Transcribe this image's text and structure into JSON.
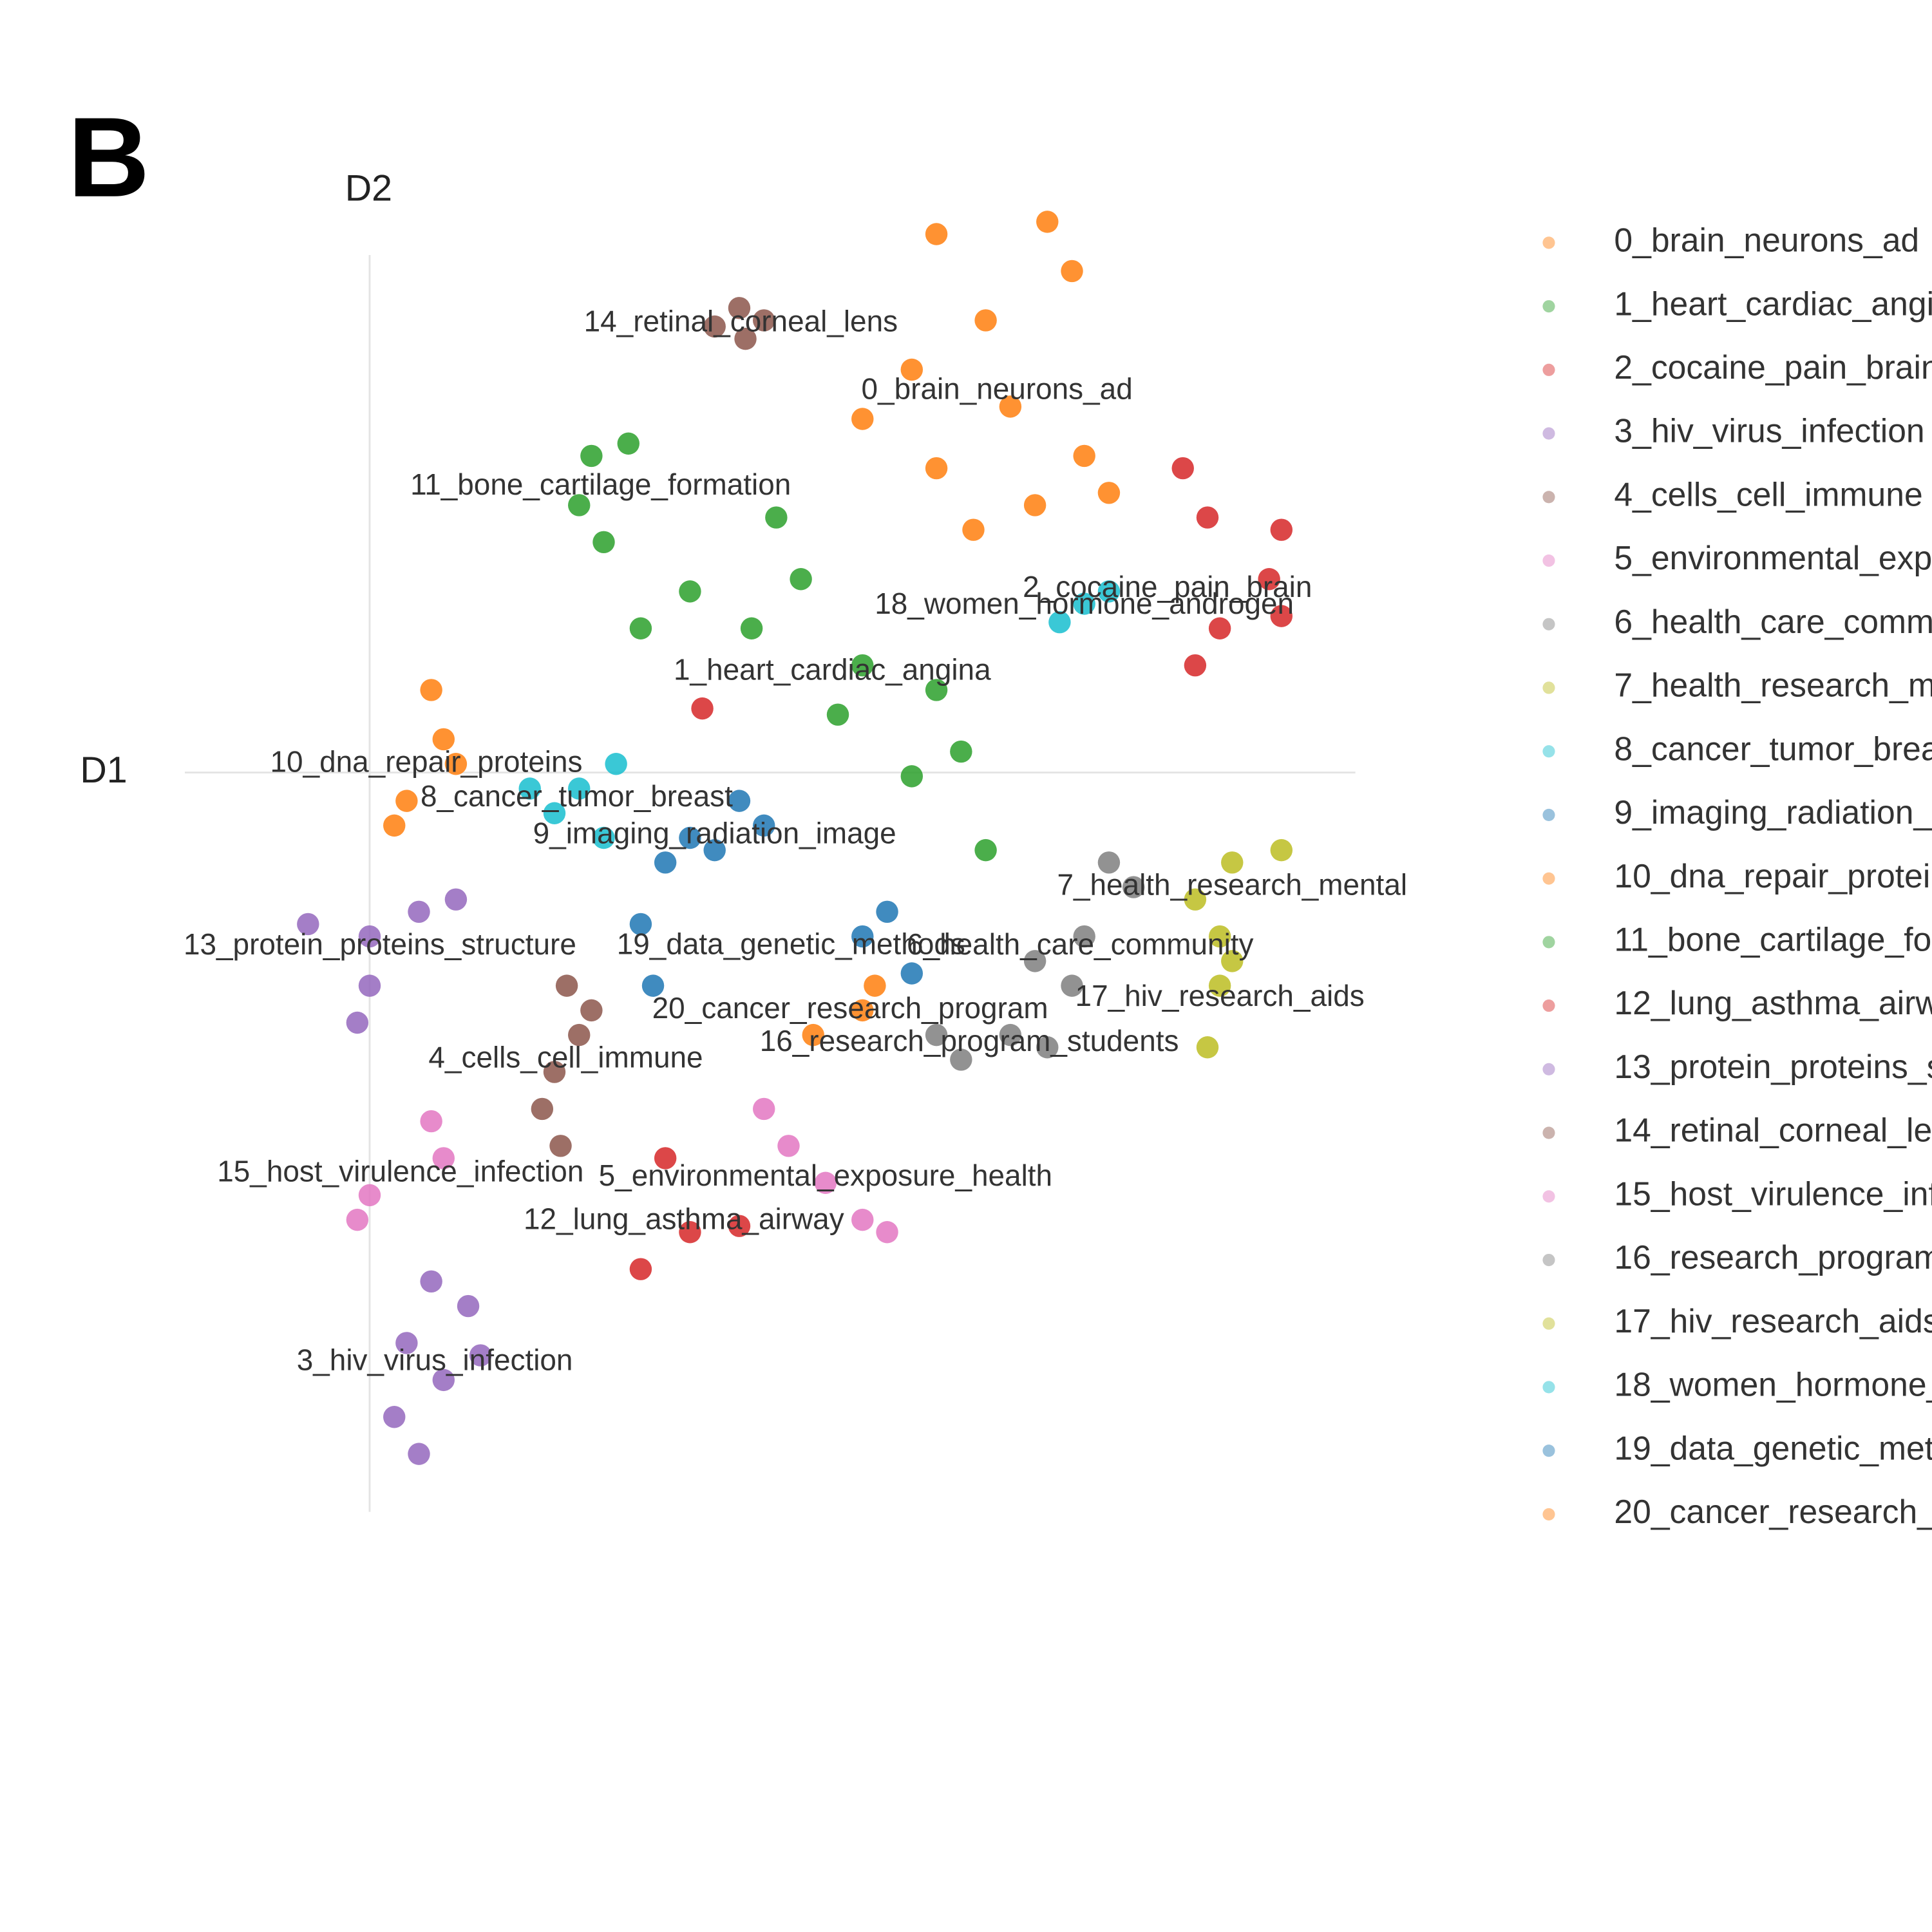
{
  "chart_data": {
    "type": "scatter",
    "panel_label": "B",
    "xlabel": "D1",
    "ylabel": "D2",
    "xlim": [
      -1.5,
      8.0
    ],
    "ylim": [
      -6,
      4.5
    ],
    "series": [
      {
        "name": "0_brain_neurons_ad",
        "color": "#ff7f0e",
        "x": [
          4.6,
          5.5,
          5.7,
          5.0,
          4.4,
          4.0,
          5.2,
          5.8,
          4.6,
          5.4,
          4.9,
          6.0
        ],
        "y": [
          4.37,
          4.47,
          4.07,
          3.67,
          3.27,
          2.87,
          2.97,
          2.57,
          2.47,
          2.17,
          1.97,
          2.27
        ]
      },
      {
        "name": "1_heart_cardiac_angina",
        "color": "#2ca02c",
        "x": [
          3.3,
          2.6,
          3.5,
          2.2,
          4.0,
          4.6,
          4.8,
          4.4,
          5.0,
          3.1,
          3.8
        ],
        "y": [
          2.07,
          1.47,
          1.57,
          1.17,
          0.87,
          0.67,
          0.17,
          -0.03,
          -0.63,
          1.17,
          0.47
        ]
      },
      {
        "name": "2_cocaine_pain_brain",
        "color": "#d62728",
        "x": [
          6.6,
          6.8,
          7.4,
          7.3,
          6.9,
          6.7,
          7.4,
          2.7
        ],
        "y": [
          2.47,
          2.07,
          1.97,
          1.57,
          1.17,
          0.87,
          1.27,
          0.52
        ]
      },
      {
        "name": "3_hiv_virus_infection",
        "color": "#9467bd",
        "x": [
          0.5,
          0.8,
          0.3,
          0.6,
          0.2,
          0.4,
          0.9
        ],
        "y": [
          -4.13,
          -4.33,
          -4.63,
          -4.93,
          -5.23,
          -5.53,
          -4.73
        ]
      },
      {
        "name": "4_cells_cell_immune",
        "color": "#8c564b",
        "x": [
          1.6,
          1.7,
          1.5,
          1.4,
          1.55,
          1.8
        ],
        "y": [
          -1.73,
          -2.13,
          -2.43,
          -2.73,
          -3.03,
          -1.93
        ]
      },
      {
        "name": "5_environmental_exposure_health",
        "color": "#e377c2",
        "x": [
          3.4,
          3.7,
          4.0,
          3.2,
          4.2
        ],
        "y": [
          -3.03,
          -3.33,
          -3.63,
          -2.73,
          -3.73
        ]
      },
      {
        "name": "6_health_care_community",
        "color": "#7f7f7f",
        "x": [
          6.0,
          5.8,
          5.7,
          6.2,
          5.4,
          5.5
        ],
        "y": [
          -0.73,
          -1.33,
          -1.73,
          -0.93,
          -1.53,
          -2.23
        ]
      },
      {
        "name": "7_health_research_mental",
        "color": "#bcbd22",
        "x": [
          6.7,
          7.0,
          7.4,
          6.9
        ],
        "y": [
          -1.03,
          -0.73,
          -0.63,
          -1.33
        ]
      },
      {
        "name": "8_cancer_tumor_breast",
        "color": "#17becf",
        "x": [
          1.3,
          1.7,
          1.9,
          1.5,
          2.0
        ],
        "y": [
          -0.13,
          -0.13,
          -0.53,
          -0.33,
          0.07
        ]
      },
      {
        "name": "9_imaging_radiation_image",
        "color": "#1f77b4",
        "x": [
          2.6,
          3.0,
          3.2,
          2.4,
          2.8
        ],
        "y": [
          -0.53,
          -0.23,
          -0.43,
          -0.73,
          -0.63
        ]
      },
      {
        "name": "10_dna_repair_proteins",
        "color": "#ff7f0e",
        "x": [
          0.5,
          0.6,
          0.3,
          0.7,
          0.2
        ],
        "y": [
          0.67,
          0.27,
          -0.23,
          0.07,
          -0.43
        ]
      },
      {
        "name": "11_bone_cartilage_formation",
        "color": "#2ca02c",
        "x": [
          1.8,
          2.1,
          1.7,
          1.9
        ],
        "y": [
          2.57,
          2.67,
          2.17,
          1.87
        ]
      },
      {
        "name": "12_lung_asthma_airway",
        "color": "#d62728",
        "x": [
          2.6,
          2.2,
          3.0,
          2.4
        ],
        "y": [
          -3.73,
          -4.03,
          -3.68,
          -3.13
        ]
      },
      {
        "name": "13_protein_proteins_structure",
        "color": "#9467bd",
        "x": [
          0.0,
          0.4,
          0.7,
          0.0,
          -0.1,
          -0.5
        ],
        "y": [
          -1.33,
          -1.13,
          -1.03,
          -1.73,
          -2.03,
          -1.23
        ]
      },
      {
        "name": "14_retinal_corneal_lens",
        "color": "#8c564b",
        "x": [
          3.0,
          2.8,
          3.2,
          3.05
        ],
        "y": [
          3.77,
          3.62,
          3.67,
          3.52
        ]
      },
      {
        "name": "15_host_virulence_infection",
        "color": "#e377c2",
        "x": [
          0.5,
          -0.1,
          0.6,
          0.0
        ],
        "y": [
          -2.83,
          -3.63,
          -3.13,
          -3.43
        ]
      },
      {
        "name": "16_research_program_students",
        "color": "#7f7f7f",
        "x": [
          5.2,
          4.8,
          4.6
        ],
        "y": [
          -2.13,
          -2.33,
          -2.13
        ]
      },
      {
        "name": "17_hiv_research_aids",
        "color": "#bcbd22",
        "x": [
          6.9,
          6.8,
          7.0
        ],
        "y": [
          -1.73,
          -2.23,
          -1.53
        ]
      },
      {
        "name": "18_women_hormone_androgen",
        "color": "#17becf",
        "x": [
          5.8,
          5.6,
          6.0
        ],
        "y": [
          1.37,
          1.22,
          1.47
        ]
      },
      {
        "name": "19_data_genetic_methods",
        "color": "#1f77b4",
        "x": [
          4.2,
          4.0,
          4.4,
          2.2,
          2.3
        ],
        "y": [
          -1.13,
          -1.33,
          -1.63,
          -1.23,
          -1.73
        ]
      },
      {
        "name": "20_cancer_research_program",
        "color": "#ff7f0e",
        "x": [
          3.6,
          4.0,
          4.1
        ],
        "y": [
          -2.13,
          -1.93,
          -1.73
        ]
      }
    ]
  }
}
